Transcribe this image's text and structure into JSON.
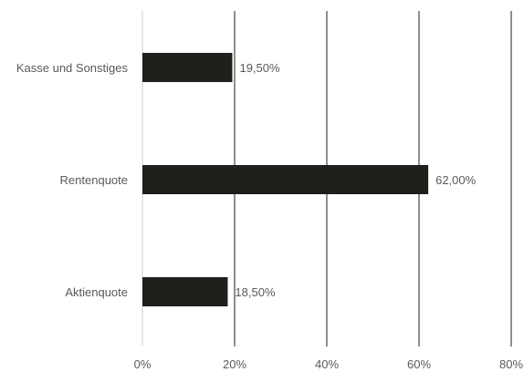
{
  "chart_data": {
    "type": "bar",
    "orientation": "horizontal",
    "categories": [
      "Kasse und Sonstiges",
      "Rentenquote",
      "Aktienquote"
    ],
    "values": [
      19.5,
      62.0,
      18.5
    ],
    "data_labels": [
      "19,50%",
      "62,00%",
      "18,50%"
    ],
    "xlim": [
      0,
      80
    ],
    "x_ticks": [
      0,
      20,
      40,
      60,
      80
    ],
    "x_tick_labels": [
      "0%",
      "20%",
      "40%",
      "60%",
      "80%"
    ],
    "grid": "vertical",
    "legend": "none",
    "bar_color": "#1f1f1c",
    "title": "",
    "xlabel": "",
    "ylabel": ""
  }
}
